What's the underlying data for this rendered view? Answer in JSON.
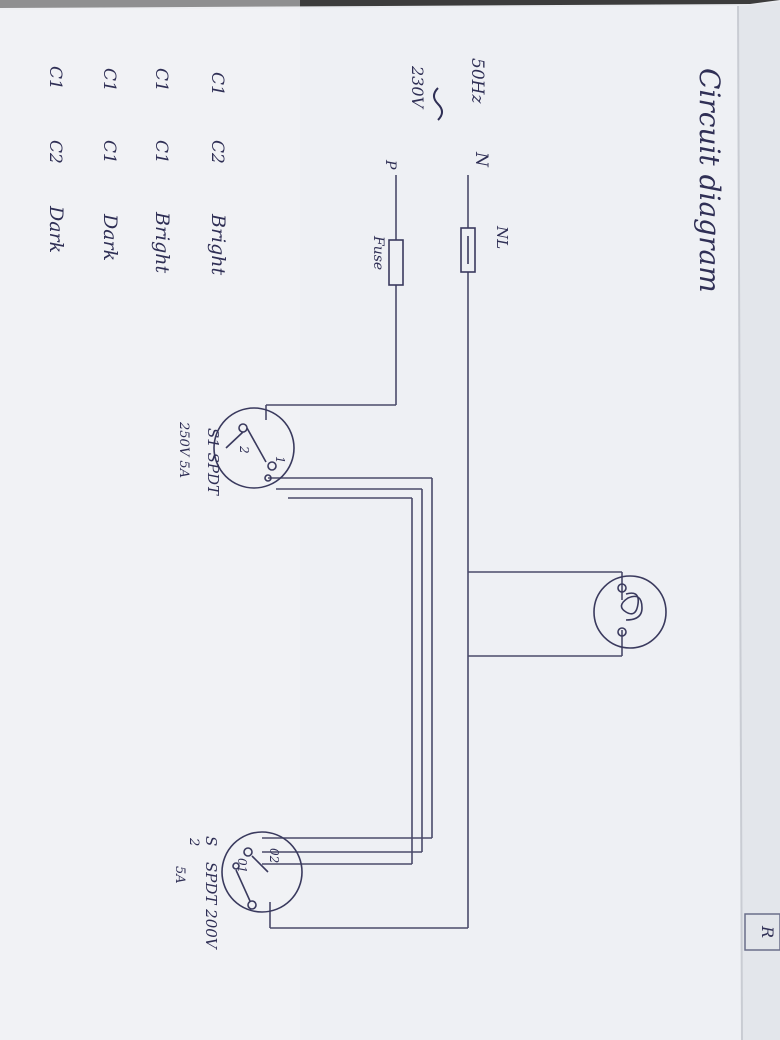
{
  "title": "Circuit diagram",
  "supply": {
    "frequency": "50Hz",
    "voltage": "230V",
    "neutral": "N",
    "phase": "P",
    "nl_label": "NL",
    "fuse_label": "Fuse"
  },
  "switch1": {
    "name": "S1 SPDT",
    "rating": "250V 5A",
    "terminal_1": "1",
    "terminal_2": "2"
  },
  "switch2": {
    "name_top": "S",
    "name_sub": "2",
    "name_rest": "SPDT 200V",
    "rating": "5A",
    "terminal_1": "01",
    "terminal_2": "02"
  },
  "truth_table": {
    "rows": [
      [
        "C1",
        "C2",
        "Bright"
      ],
      [
        "C1",
        "C1",
        "Bright"
      ],
      [
        "C1",
        "C1",
        "Dark"
      ],
      [
        "C1",
        "C2",
        "Dark"
      ]
    ]
  },
  "page_corner_mark": "R"
}
